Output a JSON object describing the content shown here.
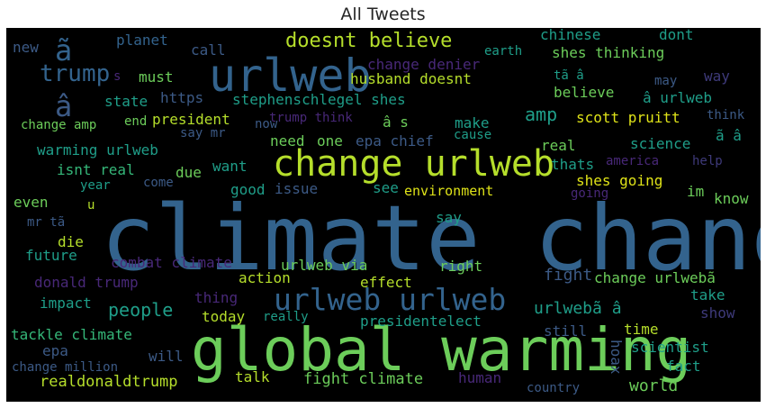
{
  "title": "All Tweets",
  "colors": {
    "teal": "#2a8a8a",
    "blue": "#33638d",
    "slate": "#3c5a86",
    "purple": "#482878",
    "violet": "#3e3a7a",
    "green": "#6ccd5a",
    "lime": "#b5de2b",
    "yellow": "#dfe318",
    "sea": "#21a685",
    "mint": "#35b779",
    "cyan": "#1f9e89"
  },
  "words": [
    {
      "text": "climate change",
      "c": "blue"
    },
    {
      "text": "global warming",
      "c": "green"
    },
    {
      "text": "urlweb",
      "c": "blue"
    },
    {
      "text": "change urlweb",
      "c": "lime"
    },
    {
      "text": "urlweb urlweb",
      "c": "blue"
    },
    {
      "text": "doesnt believe",
      "c": "lime"
    },
    {
      "text": "trump",
      "c": "blue"
    },
    {
      "text": "ã",
      "c": "blue"
    },
    {
      "text": "â",
      "c": "slate"
    },
    {
      "text": "new",
      "c": "slate"
    },
    {
      "text": "planet",
      "c": "blue"
    },
    {
      "text": "call",
      "c": "slate"
    },
    {
      "text": "must",
      "c": "green"
    },
    {
      "text": "s",
      "c": "purple"
    },
    {
      "text": "state",
      "c": "cyan"
    },
    {
      "text": "https",
      "c": "slate"
    },
    {
      "text": "stephenschlegel shes",
      "c": "cyan"
    },
    {
      "text": "change denier",
      "c": "purple"
    },
    {
      "text": "husband doesnt",
      "c": "lime"
    },
    {
      "text": "chinese",
      "c": "cyan"
    },
    {
      "text": "dont",
      "c": "cyan"
    },
    {
      "text": "shes thinking",
      "c": "green"
    },
    {
      "text": "earth",
      "c": "cyan"
    },
    {
      "text": "tã â",
      "c": "cyan"
    },
    {
      "text": "may",
      "c": "slate"
    },
    {
      "text": "way",
      "c": "violet"
    },
    {
      "text": "believe",
      "c": "green"
    },
    {
      "text": "â urlweb",
      "c": "cyan"
    },
    {
      "text": "amp",
      "c": "cyan"
    },
    {
      "text": "scott pruitt",
      "c": "yellow"
    },
    {
      "text": "think",
      "c": "slate"
    },
    {
      "text": "change amp",
      "c": "green"
    },
    {
      "text": "end",
      "c": "green"
    },
    {
      "text": "president",
      "c": "lime"
    },
    {
      "text": "now",
      "c": "slate"
    },
    {
      "text": "trump think",
      "c": "purple"
    },
    {
      "text": "â s",
      "c": "green"
    },
    {
      "text": "make",
      "c": "cyan"
    },
    {
      "text": "say mr",
      "c": "slate"
    },
    {
      "text": "need",
      "c": "green"
    },
    {
      "text": "one",
      "c": "green"
    },
    {
      "text": "epa chief",
      "c": "slate"
    },
    {
      "text": "cause",
      "c": "cyan"
    },
    {
      "text": "ã â",
      "c": "cyan"
    },
    {
      "text": "warming urlweb",
      "c": "cyan"
    },
    {
      "text": "real",
      "c": "green"
    },
    {
      "text": "science",
      "c": "cyan"
    },
    {
      "text": "isnt real",
      "c": "mint"
    },
    {
      "text": "due",
      "c": "green"
    },
    {
      "text": "want",
      "c": "cyan"
    },
    {
      "text": "thats",
      "c": "cyan"
    },
    {
      "text": "america",
      "c": "purple"
    },
    {
      "text": "help",
      "c": "violet"
    },
    {
      "text": "year",
      "c": "cyan"
    },
    {
      "text": "come",
      "c": "slate"
    },
    {
      "text": "good",
      "c": "cyan"
    },
    {
      "text": "issue",
      "c": "slate"
    },
    {
      "text": "see",
      "c": "cyan"
    },
    {
      "text": "environment",
      "c": "yellow"
    },
    {
      "text": "shes going",
      "c": "yellow"
    },
    {
      "text": "even",
      "c": "green"
    },
    {
      "text": "u",
      "c": "lime"
    },
    {
      "text": "going",
      "c": "purple"
    },
    {
      "text": "im",
      "c": "green"
    },
    {
      "text": "know",
      "c": "green"
    },
    {
      "text": "mr tã",
      "c": "slate"
    },
    {
      "text": "say",
      "c": "cyan"
    },
    {
      "text": "die",
      "c": "lime"
    },
    {
      "text": "future",
      "c": "cyan"
    },
    {
      "text": "combat climate",
      "c": "purple"
    },
    {
      "text": "urlweb via",
      "c": "green"
    },
    {
      "text": "right",
      "c": "green"
    },
    {
      "text": "fight",
      "c": "slate"
    },
    {
      "text": "change urlwebã",
      "c": "green"
    },
    {
      "text": "donald trump",
      "c": "purple"
    },
    {
      "text": "thing",
      "c": "purple"
    },
    {
      "text": "action",
      "c": "lime"
    },
    {
      "text": "effect",
      "c": "lime"
    },
    {
      "text": "take",
      "c": "cyan"
    },
    {
      "text": "impact",
      "c": "cyan"
    },
    {
      "text": "people",
      "c": "cyan"
    },
    {
      "text": "urlwebã â",
      "c": "cyan"
    },
    {
      "text": "show",
      "c": "violet"
    },
    {
      "text": "today",
      "c": "lime"
    },
    {
      "text": "really",
      "c": "cyan"
    },
    {
      "text": "presidentelect",
      "c": "cyan"
    },
    {
      "text": "time",
      "c": "lime"
    },
    {
      "text": "tackle climate",
      "c": "mint"
    },
    {
      "text": "still",
      "c": "slate"
    },
    {
      "text": "epa",
      "c": "slate"
    },
    {
      "text": "will",
      "c": "slate"
    },
    {
      "text": "scientist",
      "c": "cyan"
    },
    {
      "text": "change million",
      "c": "slate"
    },
    {
      "text": "hoax",
      "c": "slate"
    },
    {
      "text": "fact",
      "c": "cyan"
    },
    {
      "text": "talk",
      "c": "lime"
    },
    {
      "text": "fight climate",
      "c": "green"
    },
    {
      "text": "realdonaldtrump",
      "c": "lime"
    },
    {
      "text": "human",
      "c": "purple"
    },
    {
      "text": "country",
      "c": "slate"
    },
    {
      "text": "world",
      "c": "green"
    }
  ]
}
